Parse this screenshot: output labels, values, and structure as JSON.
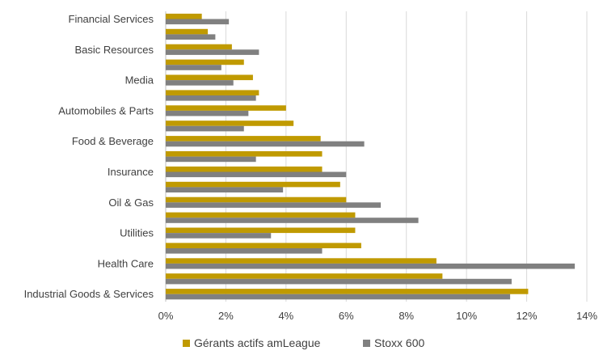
{
  "chart_data": {
    "type": "bar",
    "orientation": "horizontal",
    "categories": [
      "Financial Services",
      "",
      "Basic Resources",
      "",
      "Media",
      "",
      "Automobiles & Parts",
      "",
      "Food & Beverage",
      "",
      "Insurance",
      "",
      "Oil & Gas",
      "",
      "Utilities",
      "",
      "Health Care",
      "",
      "Industrial Goods & Services"
    ],
    "series": [
      {
        "name": "Gérants actifs amLeague",
        "color": "#C09A00",
        "values": [
          1.2,
          1.4,
          2.2,
          2.6,
          2.9,
          3.1,
          4.0,
          4.25,
          5.15,
          5.2,
          5.2,
          5.8,
          6.0,
          6.3,
          6.3,
          6.5,
          9.0,
          9.2,
          12.05
        ]
      },
      {
        "name": "Stoxx 600",
        "color": "#808080",
        "values": [
          2.1,
          1.65,
          3.1,
          1.85,
          2.25,
          3.0,
          2.75,
          2.6,
          6.6,
          3.0,
          6.0,
          3.9,
          7.15,
          8.4,
          3.5,
          5.2,
          13.6,
          11.5,
          11.45
        ]
      }
    ],
    "x_ticks": [
      "0%",
      "2%",
      "4%",
      "6%",
      "8%",
      "10%",
      "12%",
      "14%"
    ],
    "xlim": [
      0,
      14
    ],
    "x_unit": "%",
    "grid": "vertical",
    "legend_position": "bottom"
  }
}
